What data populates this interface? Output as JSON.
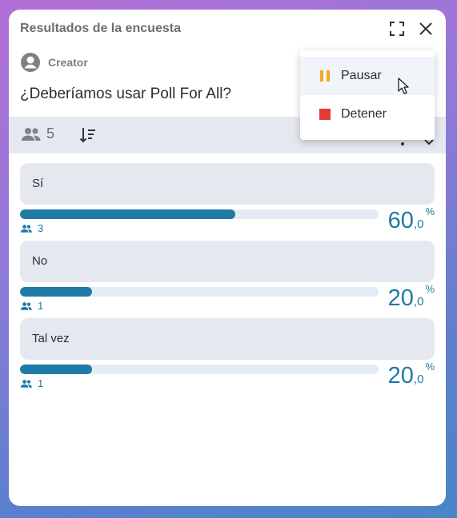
{
  "window": {
    "title": "Resultados de la encuesta"
  },
  "poll": {
    "creator": "Creator",
    "question": "¿Deberíamos usar Poll For All?",
    "total_voters": "5"
  },
  "answers": [
    {
      "label": "Sí",
      "votes": "3",
      "percent_int": "60",
      "percent_dec": ",0",
      "percent_sym": "%",
      "fraction": 0.6
    },
    {
      "label": "No",
      "votes": "1",
      "percent_int": "20",
      "percent_dec": ",0",
      "percent_sym": "%",
      "fraction": 0.2
    },
    {
      "label": "Tal vez",
      "votes": "1",
      "percent_int": "20",
      "percent_dec": ",0",
      "percent_sym": "%",
      "fraction": 0.2
    }
  ],
  "menu": {
    "items": [
      {
        "label": "Pausar",
        "icon": "pause-icon",
        "color": "#f5a623"
      },
      {
        "label": "Detener",
        "icon": "stop-icon",
        "color": "#e53935"
      }
    ]
  },
  "colors": {
    "accent": "#1e7aa6",
    "bar_track": "#e3ecf4",
    "answer_bg": "#e5e9ef"
  }
}
